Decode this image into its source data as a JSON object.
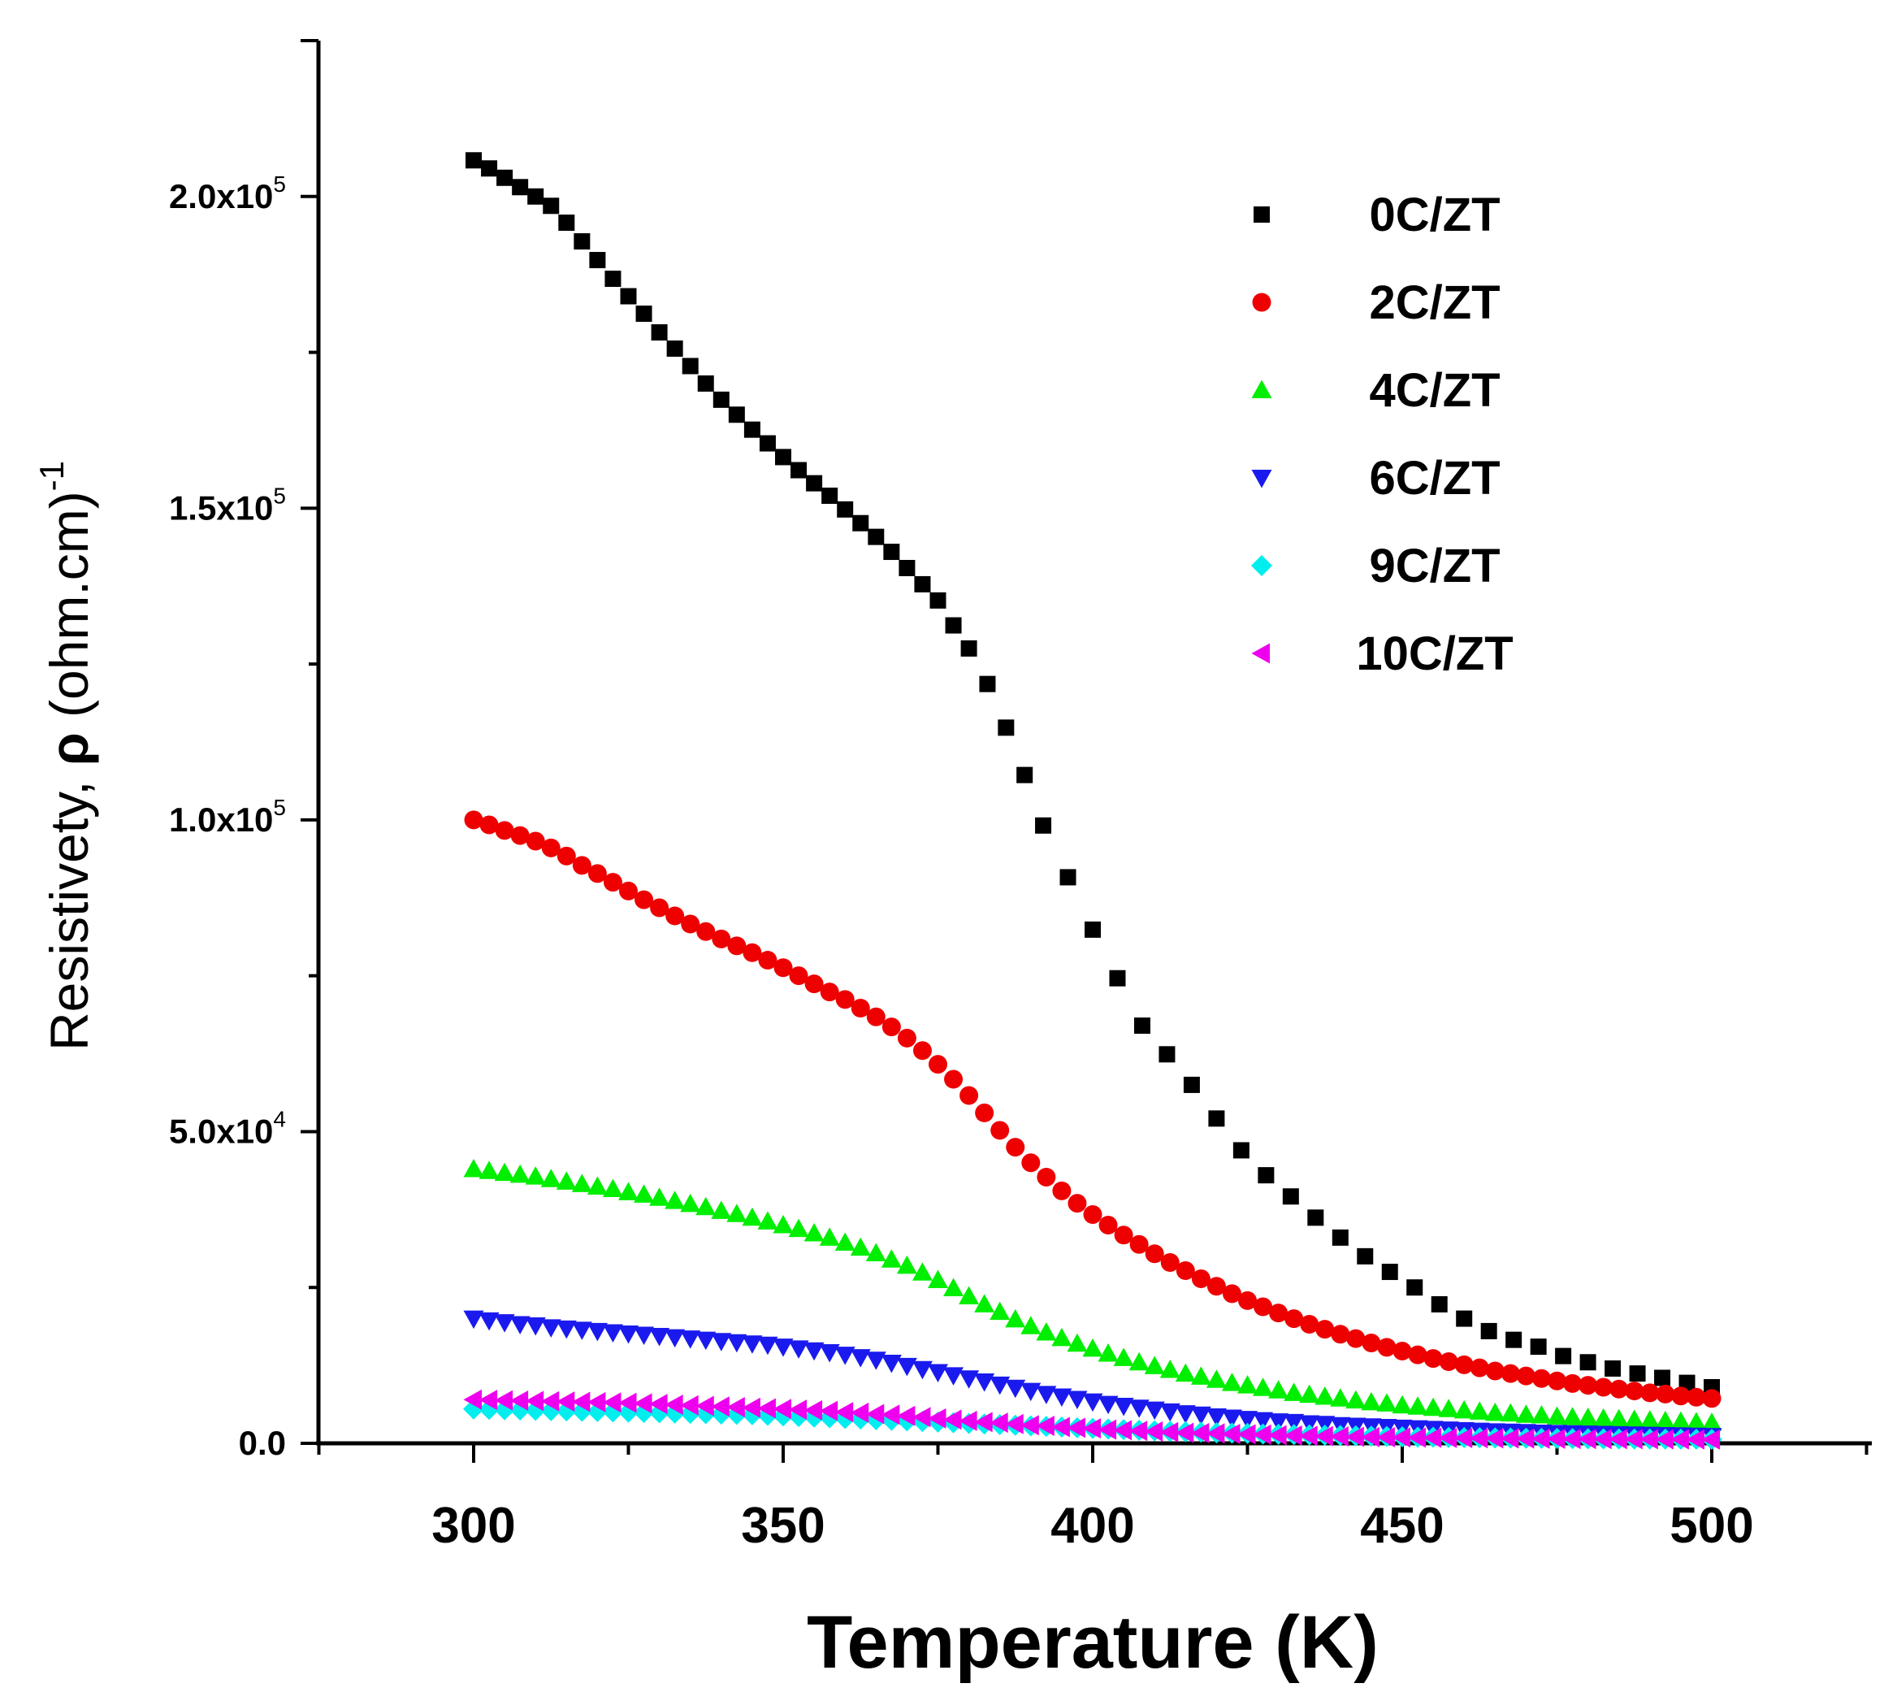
{
  "chart_data": {
    "type": "scatter",
    "title": "",
    "xlabel": "Temperature (K)",
    "ylabel": {
      "prefix": "Resistivety, ",
      "symbol": "ρ",
      "unit": " (ohm.cm)",
      "exponent": "-1"
    },
    "xlim": [
      275,
      525
    ],
    "ylim": [
      0,
      225000
    ],
    "xticks": [
      {
        "value": 300,
        "label": "300"
      },
      {
        "value": 350,
        "label": "350"
      },
      {
        "value": 400,
        "label": "400"
      },
      {
        "value": 450,
        "label": "450"
      },
      {
        "value": 500,
        "label": "500"
      }
    ],
    "yticks": [
      {
        "value": 0,
        "mantissa": "0.0",
        "exponent": ""
      },
      {
        "value": 50000,
        "mantissa": "5.0x10",
        "exponent": "4"
      },
      {
        "value": 100000,
        "mantissa": "1.0x10",
        "exponent": "5"
      },
      {
        "value": 150000,
        "mantissa": "1.5x10",
        "exponent": "5"
      },
      {
        "value": 200000,
        "mantissa": "2.0x10",
        "exponent": "5"
      }
    ],
    "legend_position": "top-right",
    "series": [
      {
        "name": "0C/ZT",
        "marker": "square",
        "color": "#000000",
        "x": [
          300,
          302.5,
          305,
          307.5,
          310,
          312.5,
          315,
          317.5,
          320,
          322.5,
          325,
          327.5,
          330,
          332.5,
          335,
          337.5,
          340,
          342.5,
          345,
          347.5,
          350,
          352.5,
          355,
          357.5,
          360,
          362.5,
          365,
          367.5,
          370,
          372.5,
          375,
          377.5,
          380,
          383,
          386,
          389,
          392,
          396,
          400,
          404,
          408,
          412,
          416,
          420,
          424,
          428,
          432,
          436,
          440,
          444,
          448,
          452,
          456,
          460,
          464,
          468,
          472,
          476,
          480,
          484,
          488,
          492,
          496,
          500
        ],
        "y": [
          205800,
          204500,
          203000,
          201500,
          200000,
          198500,
          195800,
          192800,
          189800,
          186800,
          184000,
          181200,
          178200,
          175600,
          172800,
          170000,
          167400,
          165000,
          162600,
          160400,
          158200,
          156100,
          154000,
          152000,
          149800,
          147600,
          145400,
          143000,
          140400,
          137800,
          135200,
          131200,
          127500,
          121800,
          114800,
          107200,
          99100,
          90800,
          82400,
          74600,
          67000,
          62400,
          57500,
          52100,
          47000,
          43000,
          39600,
          36200,
          33000,
          30000,
          27500,
          25000,
          22300,
          20000,
          18000,
          16600,
          15500,
          14000,
          13000,
          12000,
          11200,
          10500,
          9700,
          9000
        ]
      },
      {
        "name": "2C/ZT",
        "marker": "circle",
        "color": "#ee0000",
        "x": [
          300,
          302.5,
          305,
          307.5,
          310,
          312.5,
          315,
          317.5,
          320,
          322.5,
          325,
          327.5,
          330,
          332.5,
          335,
          337.5,
          340,
          342.5,
          345,
          347.5,
          350,
          352.5,
          355,
          357.5,
          360,
          362.5,
          365,
          367.5,
          370,
          372.5,
          375,
          377.5,
          380,
          382.5,
          385,
          387.5,
          390,
          392.5,
          395,
          397.5,
          400,
          402.5,
          405,
          407.5,
          410,
          412.5,
          415,
          417.5,
          420,
          422.5,
          425,
          427.5,
          430,
          432.5,
          435,
          437.5,
          440,
          442.5,
          445,
          447.5,
          450,
          452.5,
          455,
          457.5,
          460,
          462.5,
          465,
          467.5,
          470,
          472.5,
          475,
          477.5,
          480,
          482.5,
          485,
          487.5,
          490,
          492.5,
          495,
          497.5,
          500
        ],
        "y": [
          100000,
          99200,
          98300,
          97500,
          96600,
          95500,
          94200,
          92700,
          91400,
          90000,
          88600,
          87200,
          85900,
          84600,
          83300,
          82100,
          80900,
          79800,
          78700,
          77500,
          76300,
          75000,
          73700,
          72400,
          71200,
          69800,
          68400,
          66800,
          65000,
          63000,
          60800,
          58400,
          55800,
          53000,
          50200,
          47500,
          45000,
          42700,
          40500,
          38500,
          36700,
          35000,
          33400,
          31900,
          30400,
          29000,
          27700,
          26400,
          25200,
          24000,
          22900,
          21900,
          20900,
          20000,
          19100,
          18300,
          17500,
          16800,
          16100,
          15400,
          14800,
          14200,
          13600,
          13100,
          12600,
          12100,
          11600,
          11200,
          10800,
          10400,
          10000,
          9600,
          9300,
          9000,
          8700,
          8400,
          8100,
          7900,
          7600,
          7400,
          7200
        ]
      },
      {
        "name": "4C/ZT",
        "marker": "triangle-up",
        "color": "#00ee00",
        "x": [
          300,
          302.5,
          305,
          307.5,
          310,
          312.5,
          315,
          317.5,
          320,
          322.5,
          325,
          327.5,
          330,
          332.5,
          335,
          337.5,
          340,
          342.5,
          345,
          347.5,
          350,
          352.5,
          355,
          357.5,
          360,
          362.5,
          365,
          367.5,
          370,
          372.5,
          375,
          377.5,
          380,
          382.5,
          385,
          387.5,
          390,
          392.5,
          395,
          397.5,
          400,
          402.5,
          405,
          407.5,
          410,
          412.5,
          415,
          417.5,
          420,
          422.5,
          425,
          427.5,
          430,
          432.5,
          435,
          437.5,
          440,
          442.5,
          445,
          447.5,
          450,
          452.5,
          455,
          457.5,
          460,
          462.5,
          465,
          467.5,
          470,
          472.5,
          475,
          477.5,
          480,
          482.5,
          485,
          487.5,
          490,
          492.5,
          495,
          497.5,
          500
        ],
        "y": [
          44000,
          43700,
          43400,
          43100,
          42800,
          42400,
          42000,
          41600,
          41200,
          40800,
          40300,
          39900,
          39400,
          38900,
          38400,
          37900,
          37300,
          36800,
          36200,
          35600,
          35000,
          34400,
          33700,
          33000,
          32200,
          31400,
          30500,
          29500,
          28500,
          27400,
          26200,
          24900,
          23600,
          22300,
          21100,
          19900,
          18800,
          17800,
          16900,
          16000,
          15200,
          14400,
          13700,
          13000,
          12400,
          11800,
          11200,
          10700,
          10200,
          9700,
          9300,
          8900,
          8500,
          8100,
          7800,
          7500,
          7200,
          6900,
          6600,
          6400,
          6100,
          5900,
          5700,
          5500,
          5300,
          5100,
          4900,
          4800,
          4600,
          4500,
          4300,
          4200,
          4100,
          4000,
          3900,
          3800,
          3700,
          3600,
          3500,
          3400,
          3300
        ]
      },
      {
        "name": "6C/ZT",
        "marker": "triangle-down",
        "color": "#1a1aee",
        "x": [
          300,
          302.5,
          305,
          307.5,
          310,
          312.5,
          315,
          317.5,
          320,
          322.5,
          325,
          327.5,
          330,
          332.5,
          335,
          337.5,
          340,
          342.5,
          345,
          347.5,
          350,
          352.5,
          355,
          357.5,
          360,
          362.5,
          365,
          367.5,
          370,
          372.5,
          375,
          377.5,
          380,
          382.5,
          385,
          387.5,
          390,
          392.5,
          395,
          397.5,
          400,
          402.5,
          405,
          407.5,
          410,
          412.5,
          415,
          417.5,
          420,
          422.5,
          425,
          427.5,
          430,
          432.5,
          435,
          437.5,
          440,
          442.5,
          445,
          447.5,
          450,
          452.5,
          455,
          457.5,
          460,
          462.5,
          465,
          467.5,
          470,
          472.5,
          475,
          477.5,
          480,
          482.5,
          485,
          487.5,
          490,
          492.5,
          495,
          497.5,
          500
        ],
        "y": [
          20000,
          19700,
          19400,
          19100,
          18900,
          18600,
          18400,
          18200,
          18000,
          17800,
          17600,
          17400,
          17200,
          17000,
          16800,
          16600,
          16400,
          16200,
          16000,
          15800,
          15500,
          15200,
          14900,
          14600,
          14200,
          13800,
          13400,
          12900,
          12400,
          11900,
          11400,
          10900,
          10400,
          9900,
          9400,
          8900,
          8400,
          7900,
          7500,
          7100,
          6700,
          6300,
          6000,
          5700,
          5400,
          5100,
          4800,
          4600,
          4300,
          4100,
          3900,
          3700,
          3500,
          3400,
          3200,
          3100,
          2900,
          2800,
          2700,
          2600,
          2500,
          2400,
          2300,
          2200,
          2100,
          2000,
          1900,
          1850,
          1800,
          1700,
          1650,
          1600,
          1550,
          1500,
          1450,
          1400,
          1350,
          1300,
          1250,
          1200,
          1150
        ]
      },
      {
        "name": "9C/ZT",
        "marker": "diamond",
        "color": "#00eeee",
        "x": [
          300,
          302.5,
          305,
          307.5,
          310,
          312.5,
          315,
          317.5,
          320,
          322.5,
          325,
          327.5,
          330,
          332.5,
          335,
          337.5,
          340,
          342.5,
          345,
          347.5,
          350,
          352.5,
          355,
          357.5,
          360,
          362.5,
          365,
          367.5,
          370,
          372.5,
          375,
          377.5,
          380,
          382.5,
          385,
          387.5,
          390,
          392.5,
          395,
          397.5,
          400,
          402.5,
          405,
          407.5,
          410,
          412.5,
          415,
          417.5,
          420,
          422.5,
          425,
          427.5,
          430,
          432.5,
          435,
          437.5,
          440,
          442.5,
          445,
          447.5,
          450,
          452.5,
          455,
          457.5,
          460,
          462.5,
          465,
          467.5,
          470,
          472.5,
          475,
          477.5,
          480,
          482.5,
          485,
          487.5,
          490,
          492.5,
          495,
          497.5,
          500
        ],
        "y": [
          5500,
          5450,
          5400,
          5350,
          5300,
          5250,
          5200,
          5150,
          5100,
          5050,
          5000,
          4950,
          4900,
          4850,
          4800,
          4750,
          4700,
          4650,
          4600,
          4500,
          4400,
          4300,
          4200,
          4100,
          4000,
          3900,
          3800,
          3700,
          3600,
          3500,
          3400,
          3300,
          3200,
          3100,
          3000,
          2900,
          2800,
          2700,
          2600,
          2500,
          2400,
          2300,
          2200,
          2100,
          2000,
          1900,
          1850,
          1800,
          1700,
          1650,
          1600,
          1500,
          1450,
          1400,
          1350,
          1300,
          1250,
          1200,
          1150,
          1100,
          1050,
          1000,
          980,
          950,
          920,
          900,
          870,
          850,
          820,
          800,
          780,
          760,
          740,
          720,
          700,
          690,
          680,
          670,
          660,
          650,
          640
        ]
      },
      {
        "name": "10C/ZT",
        "marker": "triangle-left",
        "color": "#ee00ee",
        "x": [
          300,
          302.5,
          305,
          307.5,
          310,
          312.5,
          315,
          317.5,
          320,
          322.5,
          325,
          327.5,
          330,
          332.5,
          335,
          337.5,
          340,
          342.5,
          345,
          347.5,
          350,
          352.5,
          355,
          357.5,
          360,
          362.5,
          365,
          367.5,
          370,
          372.5,
          375,
          377.5,
          380,
          382.5,
          385,
          387.5,
          390,
          392.5,
          395,
          397.5,
          400,
          402.5,
          405,
          407.5,
          410,
          412.5,
          415,
          417.5,
          420,
          422.5,
          425,
          427.5,
          430,
          432.5,
          435,
          437.5,
          440,
          442.5,
          445,
          447.5,
          450,
          452.5,
          455,
          457.5,
          460,
          462.5,
          465,
          467.5,
          470,
          472.5,
          475,
          477.5,
          480,
          482.5,
          485,
          487.5,
          490,
          492.5,
          495,
          497.5,
          500
        ],
        "y": [
          7000,
          6950,
          6900,
          6850,
          6800,
          6750,
          6700,
          6650,
          6600,
          6550,
          6500,
          6400,
          6300,
          6200,
          6100,
          6000,
          5900,
          5800,
          5700,
          5600,
          5500,
          5400,
          5300,
          5200,
          5000,
          4900,
          4700,
          4600,
          4400,
          4200,
          4000,
          3800,
          3600,
          3400,
          3300,
          3100,
          2900,
          2800,
          2600,
          2500,
          2400,
          2200,
          2100,
          2000,
          1900,
          1800,
          1700,
          1650,
          1600,
          1500,
          1450,
          1400,
          1300,
          1250,
          1200,
          1150,
          1100,
          1050,
          1000,
          980,
          950,
          920,
          900,
          870,
          850,
          820,
          800,
          780,
          760,
          740,
          720,
          700,
          690,
          680,
          670,
          660,
          650,
          640,
          630,
          620,
          610
        ]
      }
    ]
  }
}
